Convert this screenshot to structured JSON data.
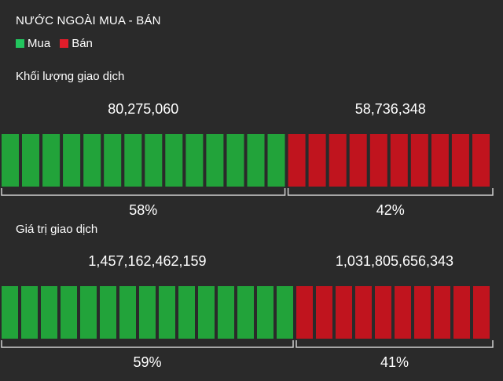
{
  "title": "NƯỚC NGOÀI MUA - BÁN",
  "legend": [
    {
      "label": "Mua",
      "color": "#22c55e"
    },
    {
      "label": "Bán",
      "color": "#e11d2a"
    }
  ],
  "colors": {
    "buy_bar": "#22a33a",
    "sell_bar": "#c0141e",
    "bracket": "#d0d0d0"
  },
  "chart_data": [
    {
      "type": "bar",
      "title": "Khối lượng giao dịch",
      "categories": [
        "Mua",
        "Bán"
      ],
      "values": [
        80275060,
        58736348
      ],
      "value_labels": [
        "80,275,060",
        "58,736,348"
      ],
      "percent_labels": [
        "58%",
        "42%"
      ],
      "percents": [
        58,
        42
      ],
      "segments": [
        14,
        10
      ]
    },
    {
      "type": "bar",
      "title": "Giá trị giao dịch",
      "categories": [
        "Mua",
        "Bán"
      ],
      "values": [
        1457162462159,
        1031805656343
      ],
      "value_labels": [
        "1,457,162,462,159",
        "1,031,805,656,343"
      ],
      "percent_labels": [
        "59%",
        "41%"
      ],
      "percents": [
        59,
        41
      ],
      "segments": [
        15,
        10
      ]
    }
  ]
}
